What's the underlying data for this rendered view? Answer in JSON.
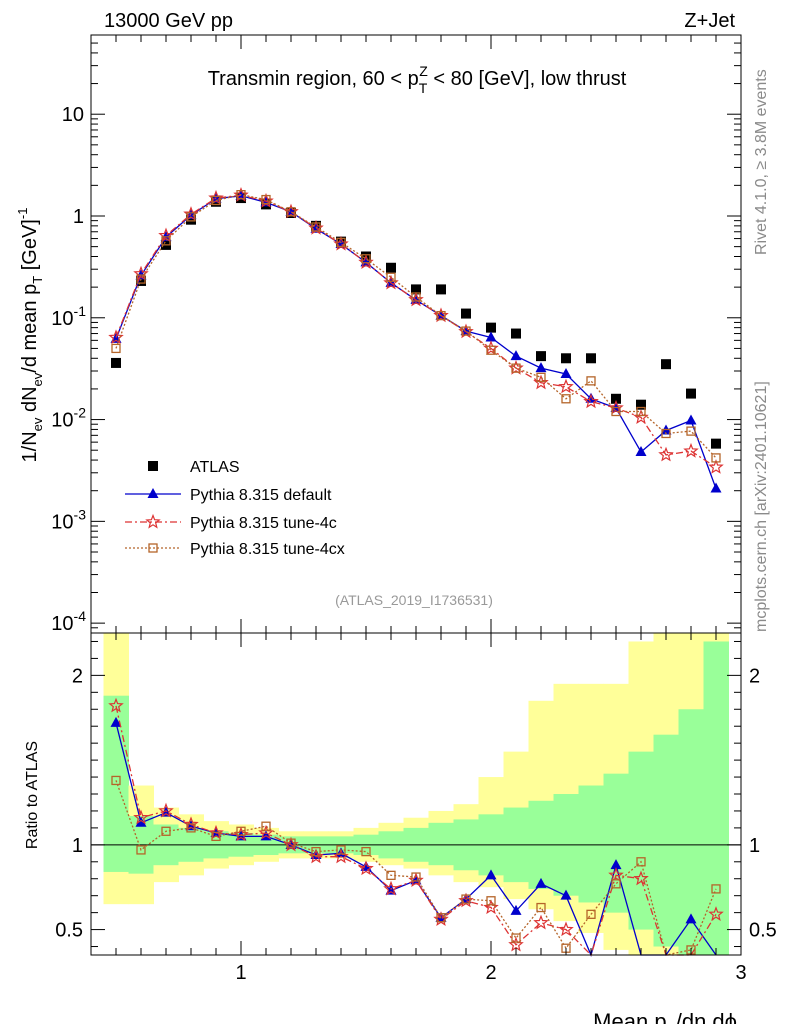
{
  "header": {
    "left": "13000 GeV pp",
    "right": "Z+Jet"
  },
  "side_labels": {
    "rivet": "Rivet 4.1.0, ≥ 3.8M events",
    "mcplots": "mcplots.cern.ch [arXiv:2401.10621]"
  },
  "chart_data": {
    "type": "scatter",
    "title": "Transmin region, 60 < p_T^Z < 80 [GeV], low thrust",
    "analysis_id": "(ATLAS_2019_I1736531)",
    "xlabel": "Mean p_T/dη dϕ",
    "ylabel": "1/N_ev dN_ev/d mean p_T [GeV]^-1",
    "ratio_ylabel": "Ratio to ATLAS",
    "xlim": [
      0.4,
      3.0
    ],
    "ylim_log": [
      8e-05,
      60
    ],
    "ratio_ylim": [
      0.35,
      2.25
    ],
    "x_ticks": [
      "1",
      "2",
      "3"
    ],
    "y_ticks": [
      "10^-4",
      "10^-3",
      "10^-2",
      "10^-1",
      "1",
      "10"
    ],
    "ratio_ticks": [
      "0.5",
      "1",
      "2"
    ],
    "x": [
      0.5,
      0.6,
      0.7,
      0.8,
      0.9,
      1.0,
      1.1,
      1.2,
      1.3,
      1.4,
      1.5,
      1.6,
      1.7,
      1.8,
      1.9,
      2.0,
      2.1,
      2.2,
      2.3,
      2.4,
      2.5,
      2.6,
      2.7,
      2.8,
      2.9
    ],
    "series": [
      {
        "name": "ATLAS",
        "color": "#000000",
        "marker": "square",
        "values": [
          0.036,
          0.23,
          0.52,
          0.92,
          1.38,
          1.5,
          1.3,
          1.07,
          0.8,
          0.56,
          0.4,
          0.31,
          0.19,
          0.19,
          0.11,
          0.08,
          0.07,
          0.042,
          0.04,
          0.04,
          0.016,
          0.014,
          0.035,
          0.018,
          0.0058
        ]
      },
      {
        "name": "Pythia 8.315 default",
        "color": "#0000cc",
        "marker": "triangle",
        "values": [
          0.062,
          0.26,
          0.62,
          1.02,
          1.48,
          1.58,
          1.36,
          1.1,
          0.75,
          0.53,
          0.35,
          0.22,
          0.15,
          0.105,
          0.074,
          0.064,
          0.042,
          0.032,
          0.028,
          0.016,
          0.013,
          0.0048,
          0.0078,
          0.0098,
          0.0021
        ],
        "ratio": [
          1.72,
          1.13,
          1.19,
          1.11,
          1.07,
          1.05,
          1.05,
          1.0,
          0.94,
          0.95,
          0.87,
          0.73,
          0.79,
          0.57,
          0.68,
          0.82,
          0.61,
          0.77,
          0.7,
          0.3,
          0.88,
          0.3,
          0.22,
          0.56,
          0.3
        ]
      },
      {
        "name": "Pythia 8.315 tune-4c",
        "color": "#dd3333",
        "marker": "star",
        "values": [
          0.064,
          0.27,
          0.64,
          1.04,
          1.5,
          1.6,
          1.4,
          1.1,
          0.76,
          0.53,
          0.35,
          0.22,
          0.15,
          0.105,
          0.073,
          0.05,
          0.032,
          0.023,
          0.021,
          0.015,
          0.013,
          0.0105,
          0.0045,
          0.0049,
          0.0034
        ],
        "ratio": [
          1.82,
          1.16,
          1.2,
          1.12,
          1.07,
          1.06,
          1.07,
          1.0,
          0.93,
          0.93,
          0.86,
          0.74,
          0.79,
          0.56,
          0.67,
          0.63,
          0.41,
          0.54,
          0.5,
          0.3,
          0.82,
          0.8,
          0.3,
          0.3,
          0.59
        ]
      },
      {
        "name": "Pythia 8.315 tune-4cx",
        "color": "#b5652a",
        "marker": "open-square",
        "values": [
          0.05,
          0.24,
          0.57,
          0.98,
          1.42,
          1.62,
          1.45,
          1.1,
          0.78,
          0.55,
          0.38,
          0.25,
          0.16,
          0.105,
          0.074,
          0.048,
          0.032,
          0.026,
          0.016,
          0.024,
          0.012,
          0.012,
          0.0073,
          0.0077,
          0.0042
        ],
        "ratio": [
          1.38,
          0.97,
          1.08,
          1.1,
          1.05,
          1.08,
          1.11,
          1.01,
          0.96,
          0.97,
          0.96,
          0.82,
          0.81,
          0.57,
          0.68,
          0.67,
          0.45,
          0.63,
          0.39,
          0.59,
          0.77,
          0.9,
          0.21,
          0.38,
          0.74
        ]
      }
    ],
    "legend": [
      "ATLAS",
      "Pythia 8.315 default",
      "Pythia 8.315 tune-4c",
      "Pythia 8.315 tune-4cx"
    ],
    "ratio_bands": {
      "inner": [
        [
          0.84,
          1.88
        ],
        [
          0.83,
          1.17
        ],
        [
          0.88,
          1.12
        ],
        [
          0.9,
          1.1
        ],
        [
          0.92,
          1.08
        ],
        [
          0.93,
          1.07
        ],
        [
          0.94,
          1.06
        ],
        [
          0.95,
          1.05
        ],
        [
          0.95,
          1.05
        ],
        [
          0.95,
          1.05
        ],
        [
          0.94,
          1.06
        ],
        [
          0.92,
          1.08
        ],
        [
          0.9,
          1.1
        ],
        [
          0.88,
          1.13
        ],
        [
          0.85,
          1.15
        ],
        [
          0.82,
          1.18
        ],
        [
          0.78,
          1.22
        ],
        [
          0.74,
          1.26
        ],
        [
          0.7,
          1.3
        ],
        [
          0.66,
          1.35
        ],
        [
          0.6,
          1.42
        ],
        [
          0.5,
          1.55
        ],
        [
          0.4,
          1.65
        ],
        [
          0.3,
          1.8
        ],
        [
          0.2,
          2.2
        ]
      ],
      "outer": [
        [
          0.65,
          2.3
        ],
        [
          0.65,
          1.35
        ],
        [
          0.78,
          1.22
        ],
        [
          0.82,
          1.18
        ],
        [
          0.86,
          1.14
        ],
        [
          0.88,
          1.12
        ],
        [
          0.9,
          1.1
        ],
        [
          0.92,
          1.08
        ],
        [
          0.92,
          1.08
        ],
        [
          0.92,
          1.08
        ],
        [
          0.9,
          1.1
        ],
        [
          0.88,
          1.13
        ],
        [
          0.86,
          1.16
        ],
        [
          0.82,
          1.2
        ],
        [
          0.78,
          1.24
        ],
        [
          0.75,
          1.4
        ],
        [
          0.68,
          1.55
        ],
        [
          0.62,
          1.85
        ],
        [
          0.55,
          1.95
        ],
        [
          0.48,
          1.95
        ],
        [
          0.38,
          1.95
        ],
        [
          0.28,
          2.2
        ],
        [
          0.25,
          2.3
        ],
        [
          0.2,
          2.3
        ],
        [
          0.15,
          2.35
        ]
      ]
    }
  }
}
